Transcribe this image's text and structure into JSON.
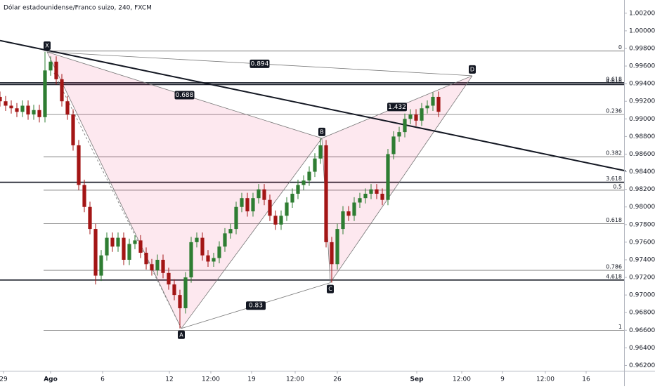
{
  "chart_data": {
    "type": "candlestick",
    "title": "Dólar estadounidense/Franco suizo, 240, FXCM",
    "x": [
      0,
      2,
      4,
      6,
      8,
      10,
      12,
      14,
      16,
      18,
      20,
      22,
      24,
      26,
      28,
      30,
      32,
      34,
      36,
      38,
      40,
      42,
      44,
      46,
      48,
      50,
      52,
      54,
      56,
      58,
      60,
      62,
      64,
      66,
      68,
      70,
      72,
      74,
      76,
      78,
      80,
      82,
      84,
      86,
      88,
      90,
      92,
      94,
      96,
      98,
      100,
      102,
      104,
      106,
      108,
      110,
      112,
      114,
      116,
      118,
      120,
      122,
      124,
      126,
      128,
      130,
      132,
      134,
      136,
      138,
      140,
      142,
      144,
      146,
      148,
      150,
      152,
      154,
      156
    ],
    "open": [
      0.9925,
      0.992,
      0.9915,
      0.9912,
      0.9908,
      0.9915,
      0.9905,
      0.991,
      0.9902,
      0.9955,
      0.9965,
      0.9945,
      0.992,
      0.9905,
      0.987,
      0.9825,
      0.98,
      0.9775,
      0.9722,
      0.9745,
      0.9765,
      0.9755,
      0.9765,
      0.974,
      0.9758,
      0.9762,
      0.9748,
      0.9735,
      0.9728,
      0.974,
      0.9725,
      0.9712,
      0.97,
      0.9685,
      0.972,
      0.976,
      0.9765,
      0.9745,
      0.9738,
      0.9742,
      0.9755,
      0.977,
      0.9775,
      0.98,
      0.981,
      0.9795,
      0.981,
      0.982,
      0.9808,
      0.979,
      0.978,
      0.979,
      0.9805,
      0.9815,
      0.9825,
      0.983,
      0.984,
      0.9855,
      0.987,
      0.976,
      0.9735,
      0.9775,
      0.9795,
      0.979,
      0.9805,
      0.981,
      0.9815,
      0.982,
      0.9815,
      0.9808,
      0.986,
      0.988,
      0.9885,
      0.99,
      0.9905,
      0.9898,
      0.9912,
      0.9915,
      0.9925
    ],
    "high": [
      0.9931,
      0.9926,
      0.9921,
      0.9918,
      0.9921,
      0.9921,
      0.9916,
      0.9916,
      0.9976,
      0.9971,
      0.9971,
      0.9951,
      0.9926,
      0.9911,
      0.9876,
      0.9831,
      0.9806,
      0.9781,
      0.9751,
      0.9771,
      0.9771,
      0.9771,
      0.9771,
      0.9764,
      0.9768,
      0.9768,
      0.9754,
      0.9741,
      0.9746,
      0.9746,
      0.9731,
      0.9718,
      0.9706,
      0.9726,
      0.9766,
      0.9771,
      0.9771,
      0.9751,
      0.9748,
      0.9761,
      0.9776,
      0.9781,
      0.9806,
      0.9816,
      0.9816,
      0.9816,
      0.9826,
      0.9826,
      0.9814,
      0.9796,
      0.9796,
      0.9811,
      0.9821,
      0.9831,
      0.9836,
      0.9846,
      0.9861,
      0.9878,
      0.9876,
      0.9766,
      0.9781,
      0.9801,
      0.9801,
      0.9811,
      0.9816,
      0.9821,
      0.9826,
      0.9826,
      0.9821,
      0.9866,
      0.9886,
      0.9891,
      0.9906,
      0.9911,
      0.9911,
      0.9918,
      0.9921,
      0.993,
      0.9931
    ],
    "low": [
      0.9914,
      0.9909,
      0.9906,
      0.9902,
      0.9902,
      0.9899,
      0.9899,
      0.9896,
      0.9896,
      0.9949,
      0.9939,
      0.9914,
      0.9899,
      0.9864,
      0.9819,
      0.9794,
      0.9769,
      0.9712,
      0.9716,
      0.9739,
      0.9749,
      0.9749,
      0.9734,
      0.9734,
      0.9752,
      0.9742,
      0.9729,
      0.9722,
      0.9722,
      0.9719,
      0.9706,
      0.9694,
      0.9662,
      0.9679,
      0.9714,
      0.9754,
      0.9739,
      0.9732,
      0.9732,
      0.9736,
      0.9749,
      0.9764,
      0.9769,
      0.9794,
      0.9789,
      0.9789,
      0.9804,
      0.9802,
      0.9784,
      0.9774,
      0.9774,
      0.9784,
      0.9799,
      0.9809,
      0.9819,
      0.9824,
      0.9834,
      0.9849,
      0.9754,
      0.9714,
      0.9729,
      0.9769,
      0.9784,
      0.9784,
      0.9799,
      0.9804,
      0.9809,
      0.9809,
      0.9802,
      0.9802,
      0.9854,
      0.9874,
      0.9879,
      0.9894,
      0.9892,
      0.9892,
      0.9906,
      0.9909,
      0.9902
    ],
    "close": [
      0.992,
      0.9915,
      0.9912,
      0.9908,
      0.9915,
      0.9905,
      0.991,
      0.9902,
      0.9955,
      0.9965,
      0.9945,
      0.992,
      0.9905,
      0.987,
      0.9825,
      0.98,
      0.9775,
      0.9722,
      0.9745,
      0.9765,
      0.9755,
      0.9765,
      0.974,
      0.9758,
      0.9762,
      0.9748,
      0.9735,
      0.9728,
      0.974,
      0.9725,
      0.9712,
      0.97,
      0.9685,
      0.972,
      0.976,
      0.9765,
      0.9745,
      0.9738,
      0.9742,
      0.9755,
      0.977,
      0.9775,
      0.98,
      0.981,
      0.9795,
      0.981,
      0.982,
      0.9808,
      0.979,
      0.978,
      0.979,
      0.9805,
      0.9815,
      0.9825,
      0.983,
      0.984,
      0.9855,
      0.987,
      0.976,
      0.9735,
      0.9775,
      0.9795,
      0.979,
      0.9805,
      0.981,
      0.9815,
      0.982,
      0.9815,
      0.9808,
      0.986,
      0.988,
      0.9885,
      0.99,
      0.9905,
      0.9898,
      0.9912,
      0.9915,
      0.9925,
      0.9908
    ],
    "up_color": "#2e7d32",
    "down_color": "#a31515",
    "xlim": [
      0,
      222
    ],
    "ylim": [
      0.9614,
      1.0035
    ],
    "xticks": [
      {
        "value": 1.25,
        "label": "29"
      },
      {
        "value": 18,
        "label": "Ago"
      },
      {
        "value": 36.5,
        "label": "6"
      },
      {
        "value": 60.25,
        "label": "12"
      },
      {
        "value": 75,
        "label": "12:00"
      },
      {
        "value": 89.5,
        "label": "19"
      },
      {
        "value": 105,
        "label": "12:00"
      },
      {
        "value": 120,
        "label": "26"
      },
      {
        "value": 148.25,
        "label": "Sep"
      },
      {
        "value": 164.25,
        "label": "12:00"
      },
      {
        "value": 178.75,
        "label": "9"
      },
      {
        "value": 194,
        "label": "12:00"
      },
      {
        "value": 208.5,
        "label": "16"
      }
    ],
    "yticks": [
      {
        "value": 1.002,
        "label": "1.00200"
      },
      {
        "value": 1.0,
        "label": "1.00000"
      },
      {
        "value": 0.998,
        "label": "0.99800"
      },
      {
        "value": 0.996,
        "label": "0.99600"
      },
      {
        "value": 0.994,
        "label": "0.99400"
      },
      {
        "value": 0.992,
        "label": "0.99200"
      },
      {
        "value": 0.99,
        "label": "0.99000"
      },
      {
        "value": 0.988,
        "label": "0.98800"
      },
      {
        "value": 0.986,
        "label": "0.98600"
      },
      {
        "value": 0.984,
        "label": "0.98400"
      },
      {
        "value": 0.982,
        "label": "0.98200"
      },
      {
        "value": 0.98,
        "label": "0.98000"
      },
      {
        "value": 0.978,
        "label": "0.97800"
      },
      {
        "value": 0.976,
        "label": "0.97600"
      },
      {
        "value": 0.974,
        "label": "0.97400"
      },
      {
        "value": 0.972,
        "label": "0.97200"
      },
      {
        "value": 0.97,
        "label": "0.97000"
      },
      {
        "value": 0.968,
        "label": "0.96800"
      },
      {
        "value": 0.966,
        "label": "0.96600"
      },
      {
        "value": 0.964,
        "label": "0.96400"
      },
      {
        "value": 0.962,
        "label": "0.96200"
      }
    ],
    "levels": [
      {
        "label": "0",
        "value": 0.9977,
        "bold": false
      },
      {
        "label": "0.618",
        "value": 0.9941,
        "bold": true
      },
      {
        "label": "4.618",
        "value": 0.9939,
        "bold": true
      },
      {
        "label": "0.236",
        "value": 0.9905,
        "bold": false
      },
      {
        "label": "0.382",
        "value": 0.9857,
        "bold": false
      },
      {
        "label": "3.618",
        "value": 0.9828,
        "bold": true
      },
      {
        "label": "0.5",
        "value": 0.9819,
        "bold": false
      },
      {
        "label": "0.618",
        "value": 0.9781,
        "bold": false
      },
      {
        "label": "0.786",
        "value": 0.9728,
        "bold": false
      },
      {
        "label": "4.618",
        "value": 0.9717,
        "bold": true
      },
      {
        "label": "1",
        "value": 0.966,
        "bold": false
      }
    ],
    "trendline": {
      "x": [
        0,
        222.5
      ],
      "y": [
        0.9989,
        0.9841
      ]
    },
    "pattern": {
      "points": [
        {
          "label": "X",
          "x": 16.75,
          "y": 0.9976
        },
        {
          "label": "A",
          "x": 64.5,
          "y": 0.9662
        },
        {
          "label": "B",
          "x": 114.5,
          "y": 0.9878
        },
        {
          "label": "C",
          "x": 117.5,
          "y": 0.9714
        },
        {
          "label": "D",
          "x": 168,
          "y": 0.9949
        }
      ],
      "ratios": [
        "0.894",
        "0.688",
        "1.432",
        "0.83"
      ]
    }
  }
}
